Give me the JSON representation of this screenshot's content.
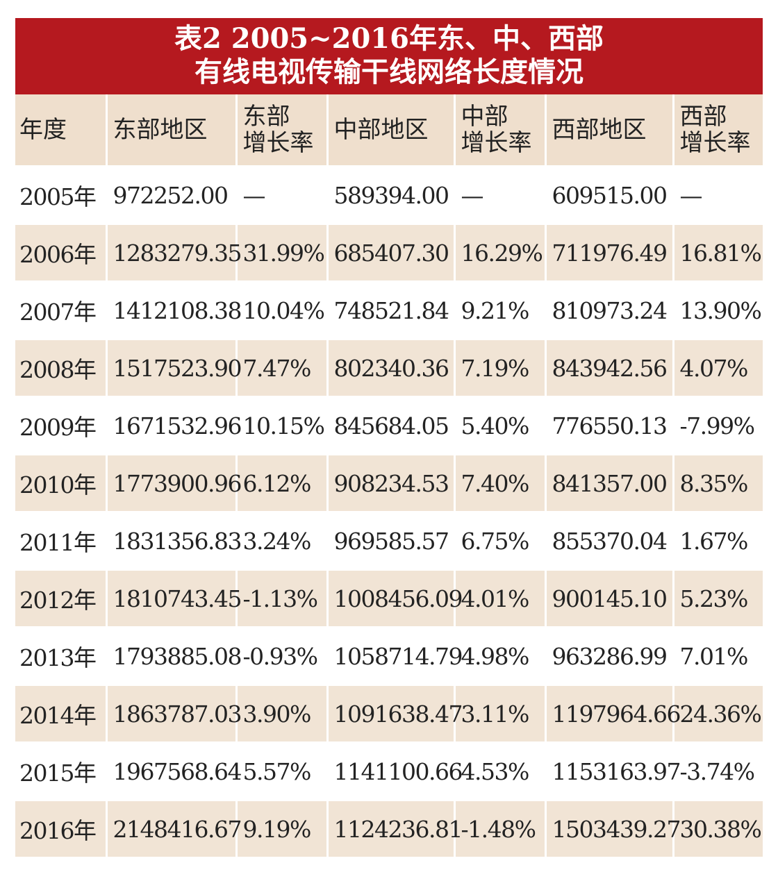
{
  "title": {
    "line1": "表2  2005~2016年东、中、西部",
    "line2": "有线电视传输干线网络长度情况"
  },
  "headers": {
    "year": "年度",
    "east": "东部地区",
    "east_rate_1": "东部",
    "east_rate_2": "增长率",
    "mid": "中部地区",
    "mid_rate_1": "中部",
    "mid_rate_2": "增长率",
    "west": "西部地区",
    "west_rate_1": "西部",
    "west_rate_2": "增长率"
  },
  "rows": [
    {
      "year": "2005年",
      "east": "972252.00",
      "east_rate": "—",
      "mid": "589394.00",
      "mid_rate": "—",
      "west": "609515.00",
      "west_rate": "—"
    },
    {
      "year": "2006年",
      "east": "1283279.35",
      "east_rate": "31.99%",
      "mid": "685407.30",
      "mid_rate": "16.29%",
      "west": "711976.49",
      "west_rate": "16.81%"
    },
    {
      "year": "2007年",
      "east": "1412108.38",
      "east_rate": "10.04%",
      "mid": "748521.84",
      "mid_rate": "9.21%",
      "west": "810973.24",
      "west_rate": "13.90%"
    },
    {
      "year": "2008年",
      "east": "1517523.90",
      "east_rate": "7.47%",
      "mid": "802340.36",
      "mid_rate": "7.19%",
      "west": "843942.56",
      "west_rate": "4.07%"
    },
    {
      "year": "2009年",
      "east": "1671532.96",
      "east_rate": "10.15%",
      "mid": "845684.05",
      "mid_rate": "5.40%",
      "west": "776550.13",
      "west_rate": "-7.99%"
    },
    {
      "year": "2010年",
      "east": "1773900.96",
      "east_rate": "6.12%",
      "mid": "908234.53",
      "mid_rate": "7.40%",
      "west": "841357.00",
      "west_rate": "8.35%"
    },
    {
      "year": "2011年",
      "east": "1831356.83",
      "east_rate": "3.24%",
      "mid": "969585.57",
      "mid_rate": "6.75%",
      "west": "855370.04",
      "west_rate": "1.67%"
    },
    {
      "year": "2012年",
      "east": "1810743.45",
      "east_rate": "-1.13%",
      "mid": "1008456.09",
      "mid_rate": "4.01%",
      "west": "900145.10",
      "west_rate": "5.23%"
    },
    {
      "year": "2013年",
      "east": "1793885.08",
      "east_rate": "-0.93%",
      "mid": "1058714.79",
      "mid_rate": "4.98%",
      "west": "963286.99",
      "west_rate": "7.01%"
    },
    {
      "year": "2014年",
      "east": "1863787.03",
      "east_rate": "3.90%",
      "mid": "1091638.47",
      "mid_rate": "3.11%",
      "west": "1197964.66",
      "west_rate": "24.36%"
    },
    {
      "year": "2015年",
      "east": "1967568.64",
      "east_rate": "5.57%",
      "mid": "1141100.66",
      "mid_rate": "4.53%",
      "west": "1153163.97",
      "west_rate": "-3.74%"
    },
    {
      "year": "2016年",
      "east": "2148416.67",
      "east_rate": "9.19%",
      "mid": "1124236.81",
      "mid_rate": "-1.48%",
      "west": "1503439.27",
      "west_rate": "30.38%"
    }
  ],
  "colors": {
    "title_bg": "#b5191f",
    "title_text": "#ffffff",
    "header_bg": "#efdfcd",
    "stripe_bg": "#f1e4d5",
    "row_bg": "#ffffff"
  }
}
